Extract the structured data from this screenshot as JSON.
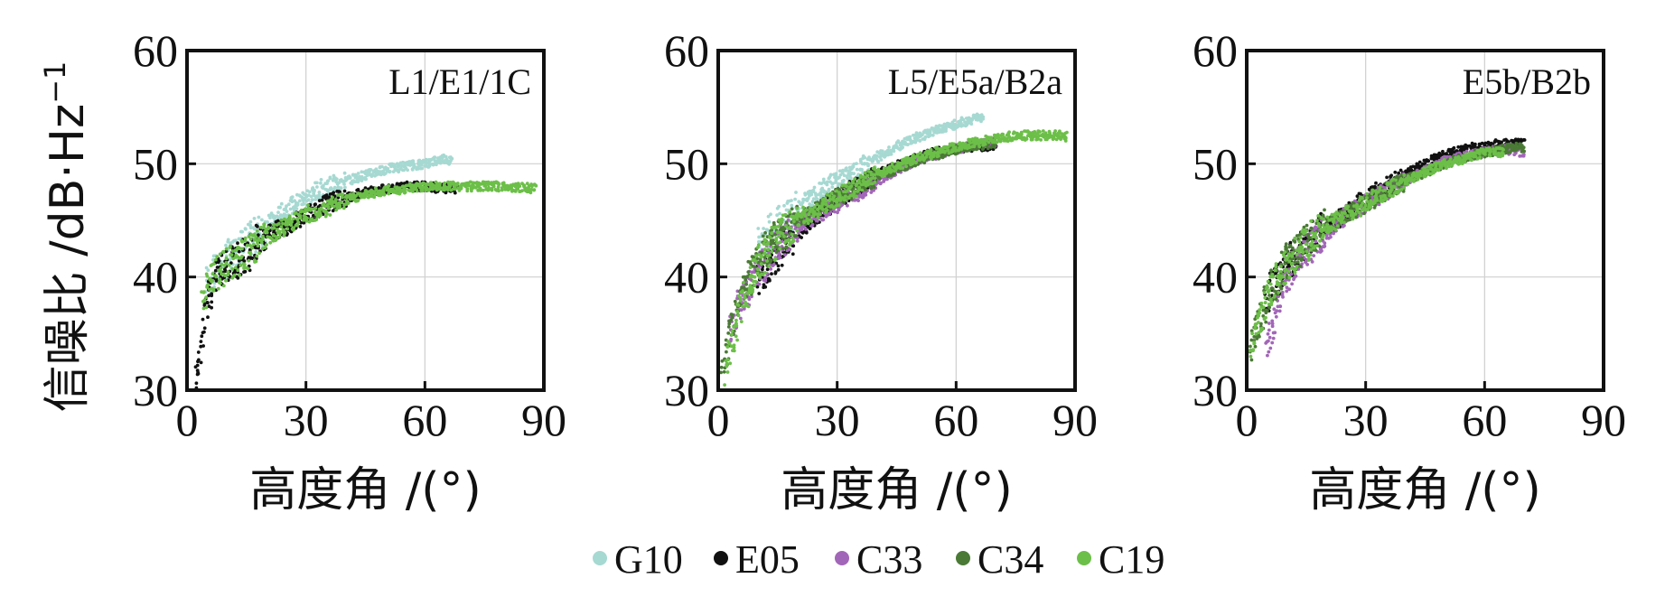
{
  "figure": {
    "ylabel": "信噪比 /dB·Hz",
    "ylabel_exponent": "−1",
    "xlabel": "高度角 /(°)"
  },
  "legend": [
    {
      "name": "G10",
      "color": "#a6d9d2"
    },
    {
      "name": "E05",
      "color": "#111111"
    },
    {
      "name": "C33",
      "color": "#a266b8"
    },
    {
      "name": "C34",
      "color": "#4a7a35"
    },
    {
      "name": "C19",
      "color": "#6cbf48"
    }
  ],
  "chart_data": [
    {
      "type": "scatter",
      "title": "L1/E1/1C",
      "xlabel": "高度角 /(°)",
      "ylabel": "信噪比 /dB·Hz−1",
      "xlim": [
        0,
        90
      ],
      "ylim": [
        30,
        60
      ],
      "xticks": [
        "0",
        "30",
        "60",
        "90"
      ],
      "yticks": [
        "30",
        "40",
        "50",
        "60"
      ],
      "grid": true,
      "series": [
        {
          "name": "G10",
          "color": "#a6d9d2",
          "x": [
            5,
            10,
            15,
            20,
            25,
            30,
            35,
            40,
            45,
            50,
            55,
            60,
            65,
            67
          ],
          "y": [
            39.5,
            41.5,
            43,
            44.5,
            46,
            47,
            48,
            48.5,
            49,
            49.5,
            49.8,
            50,
            50.5,
            50.2
          ]
        },
        {
          "name": "E05",
          "color": "#111111",
          "x": [
            2,
            3,
            5,
            8,
            10,
            15,
            20,
            25,
            30,
            35,
            40,
            45,
            50,
            55,
            60,
            65,
            68
          ],
          "y": [
            31,
            33,
            38,
            40.5,
            41,
            42,
            43.8,
            44.5,
            45.5,
            46.5,
            47,
            47.5,
            47.8,
            48,
            48,
            47.8,
            47.8
          ]
        },
        {
          "name": "C19",
          "color": "#6cbf48",
          "x": [
            4,
            6,
            8,
            10,
            15,
            20,
            25,
            30,
            35,
            40,
            45,
            50,
            55,
            60,
            65,
            70,
            75,
            80,
            85,
            88
          ],
          "y": [
            38,
            39.5,
            40.5,
            41,
            42,
            43.5,
            44.5,
            45.5,
            46,
            46.8,
            47.3,
            47.6,
            47.8,
            48,
            48,
            48,
            48,
            48,
            47.9,
            47.8
          ]
        }
      ]
    },
    {
      "type": "scatter",
      "title": "L5/E5a/B2a",
      "xlabel": "高度角 /(°)",
      "ylabel": "",
      "xlim": [
        0,
        90
      ],
      "ylim": [
        30,
        60
      ],
      "xticks": [
        "0",
        "30",
        "60",
        "90"
      ],
      "yticks": [
        "30",
        "40",
        "50",
        "60"
      ],
      "grid": true,
      "series": [
        {
          "name": "G10",
          "color": "#a6d9d2",
          "x": [
            10,
            15,
            20,
            25,
            30,
            35,
            40,
            45,
            50,
            55,
            60,
            65,
            67
          ],
          "y": [
            43,
            44.5,
            46,
            47.5,
            48.5,
            49.5,
            50.5,
            51.5,
            52.3,
            53,
            53.5,
            54,
            54
          ]
        },
        {
          "name": "E05",
          "color": "#111111",
          "x": [
            10,
            15,
            20,
            25,
            30,
            35,
            40,
            45,
            50,
            55,
            60,
            65,
            70
          ],
          "y": [
            39.5,
            42,
            44,
            45.5,
            46.8,
            48,
            49,
            49.8,
            50.5,
            51,
            51.3,
            51.5,
            51.6
          ]
        },
        {
          "name": "C33",
          "color": "#a266b8",
          "x": [
            3,
            5,
            7,
            10,
            12,
            15,
            18,
            20,
            25,
            30,
            40,
            50,
            60,
            65,
            70
          ],
          "y": [
            35,
            37,
            38.5,
            40.5,
            41.5,
            43,
            44,
            44.5,
            45.5,
            46.5,
            48.5,
            50.3,
            51.3,
            51.7,
            52
          ]
        },
        {
          "name": "C34",
          "color": "#4a7a35",
          "x": [
            1,
            3,
            5,
            8,
            10,
            15,
            20,
            25,
            30,
            40,
            50,
            60,
            65,
            70
          ],
          "y": [
            31,
            35,
            37.5,
            40,
            41.5,
            43.5,
            45,
            46,
            47,
            48.8,
            50.3,
            51.3,
            51.6,
            51.8
          ]
        },
        {
          "name": "C19",
          "color": "#6cbf48",
          "x": [
            2,
            5,
            8,
            10,
            15,
            20,
            25,
            30,
            40,
            50,
            60,
            70,
            75,
            80,
            85,
            88
          ],
          "y": [
            32,
            36.5,
            39.5,
            41,
            43.5,
            45,
            46,
            47,
            49,
            50.5,
            51.5,
            52.2,
            52.5,
            52.5,
            52.5,
            52.4
          ]
        }
      ]
    },
    {
      "type": "scatter",
      "title": "E5b/B2b",
      "xlabel": "高度角 /(°)",
      "ylabel": "",
      "xlim": [
        0,
        90
      ],
      "ylim": [
        30,
        60
      ],
      "xticks": [
        "0",
        "30",
        "60",
        "90"
      ],
      "yticks": [
        "30",
        "40",
        "50",
        "60"
      ],
      "grid": true,
      "series": [
        {
          "name": "E05",
          "color": "#111111",
          "x": [
            5,
            8,
            10,
            15,
            20,
            25,
            30,
            35,
            40,
            45,
            50,
            55,
            60,
            65,
            70
          ],
          "y": [
            38,
            40,
            41,
            43,
            44.5,
            45.5,
            47,
            48,
            49,
            50,
            50.8,
            51.3,
            51.6,
            51.8,
            51.8
          ]
        },
        {
          "name": "C33",
          "color": "#a266b8",
          "x": [
            5,
            7,
            8,
            10,
            12,
            15,
            18,
            20,
            25,
            30,
            40,
            50,
            60,
            65,
            70
          ],
          "y": [
            34,
            36,
            38,
            40,
            41.5,
            42.5,
            43.5,
            44,
            45.5,
            46.5,
            48.5,
            50.3,
            51,
            51.3,
            51
          ]
        },
        {
          "name": "C34",
          "color": "#4a7a35",
          "x": [
            1,
            3,
            5,
            8,
            10,
            15,
            20,
            25,
            30,
            40,
            50,
            60,
            65,
            70
          ],
          "y": [
            34,
            36,
            38,
            40,
            41.5,
            43,
            44.5,
            45.5,
            46.5,
            48.5,
            50,
            51,
            51.3,
            51.5
          ]
        },
        {
          "name": "C19",
          "color": "#6cbf48",
          "x": [
            1,
            3,
            6,
            10,
            15,
            20,
            30,
            40,
            50,
            60,
            65
          ],
          "y": [
            34,
            36,
            39,
            41,
            43,
            44.5,
            46.5,
            48.5,
            50,
            51,
            51
          ]
        }
      ]
    }
  ]
}
